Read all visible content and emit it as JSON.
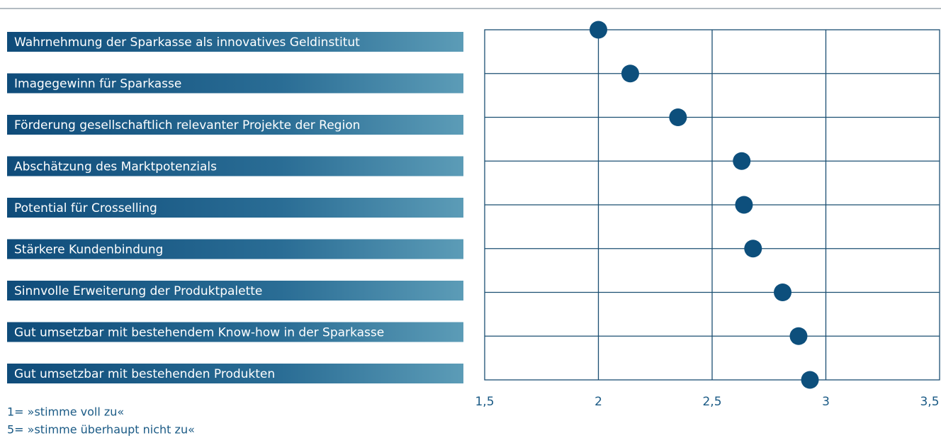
{
  "chart_data": {
    "type": "dot",
    "categories": [
      "Wahrnehmung der Sparkasse als innovatives Geldinstitut",
      "Imagegewinn für Sparkasse",
      "Förderung gesellschaftlich relevanter Projekte der Region",
      "Abschätzung des Marktpotenzials",
      "Potential für Crosselling",
      "Stärkere Kundenbindung",
      "Sinnvolle Erweiterung der Produktpalette",
      "Gut umsetzbar mit bestehendem Know-how in der Sparkasse",
      "Gut umsetzbar mit bestehenden Produkten"
    ],
    "values": [
      2.0,
      2.14,
      2.35,
      2.63,
      2.64,
      2.68,
      2.81,
      2.88,
      2.93
    ],
    "color": "#0d4f7c",
    "xlim": [
      1.5,
      3.5
    ],
    "xticks": [
      {
        "value": 1.5,
        "label": "1,5"
      },
      2,
      {
        "value": 2.5,
        "label": "2,5"
      },
      3,
      {
        "value": 3.5,
        "label": "3,5"
      }
    ],
    "grid": true,
    "notes": [
      "1= »stimme voll zu«",
      "5= »stimme überhaupt nicht zu«"
    ]
  }
}
